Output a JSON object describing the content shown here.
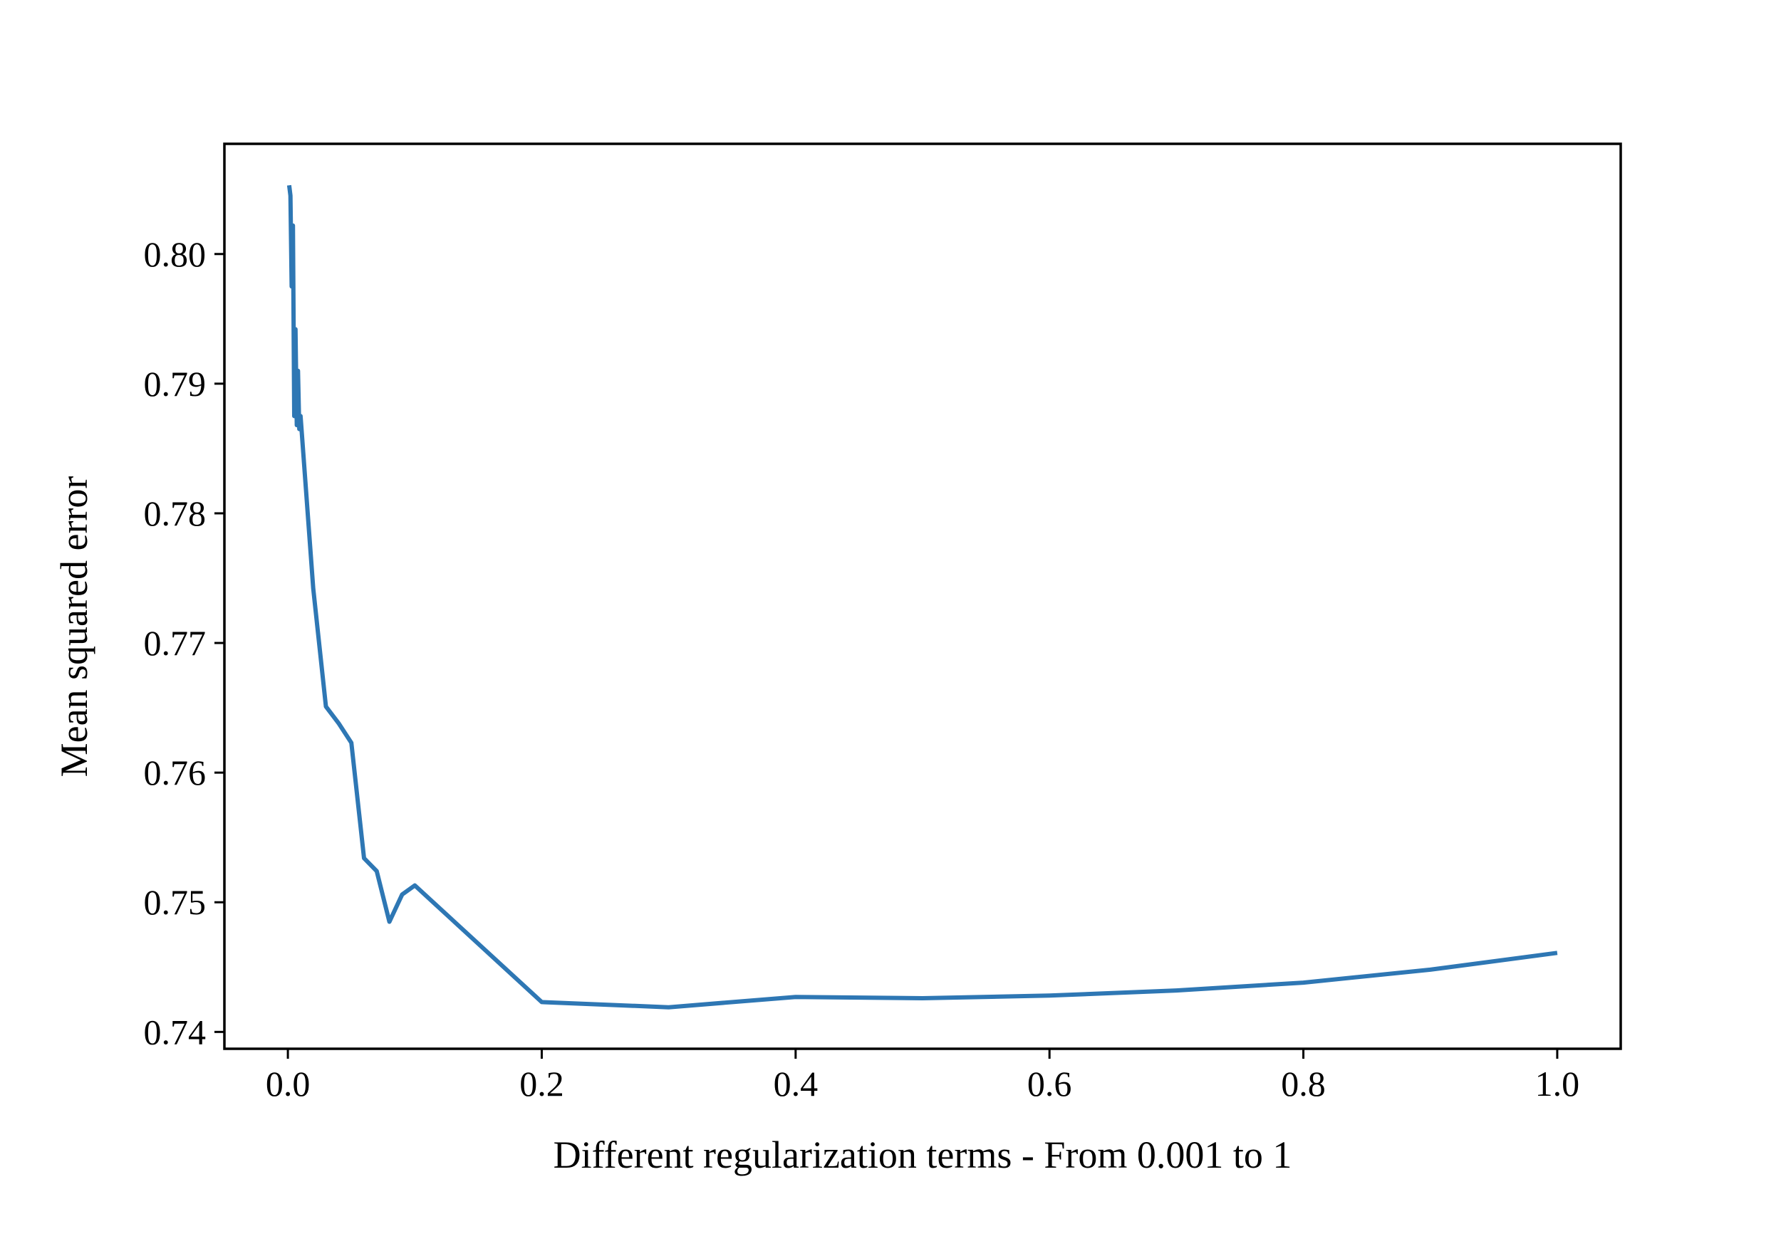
{
  "chart_data": {
    "type": "line",
    "title": "",
    "xlabel": "Different regularization terms - From 0.001 to 1",
    "ylabel": "Mean squared error",
    "xlim": [
      -0.05,
      1.05
    ],
    "ylim": [
      0.7387,
      0.8085
    ],
    "xticks": [
      0.0,
      0.2,
      0.4,
      0.6,
      0.8,
      1.0
    ],
    "xtick_labels": [
      "0.0",
      "0.2",
      "0.4",
      "0.6",
      "0.8",
      "1.0"
    ],
    "yticks": [
      0.74,
      0.75,
      0.76,
      0.77,
      0.78,
      0.79,
      0.8
    ],
    "ytick_labels": [
      "0.74",
      "0.75",
      "0.76",
      "0.77",
      "0.78",
      "0.79",
      "0.80"
    ],
    "grid": false,
    "legend": "none",
    "series_color": "#2e77b4",
    "series": [
      {
        "x": [
          0.001,
          0.002,
          0.003,
          0.004,
          0.005,
          0.006,
          0.007,
          0.008,
          0.009,
          0.01,
          0.02,
          0.03,
          0.04,
          0.05,
          0.06,
          0.07,
          0.08,
          0.09,
          0.1,
          0.2,
          0.3,
          0.4,
          0.5,
          0.6,
          0.7,
          0.8,
          0.9,
          1.0
        ],
        "y": [
          0.8053,
          0.8045,
          0.7975,
          0.8022,
          0.7875,
          0.7942,
          0.7868,
          0.791,
          0.7865,
          0.7875,
          0.7742,
          0.7651,
          0.7638,
          0.7623,
          0.7534,
          0.7524,
          0.7485,
          0.7506,
          0.7513,
          0.7423,
          0.7419,
          0.7427,
          0.7426,
          0.7428,
          0.7432,
          0.7438,
          0.7448,
          0.7461
        ]
      }
    ]
  }
}
